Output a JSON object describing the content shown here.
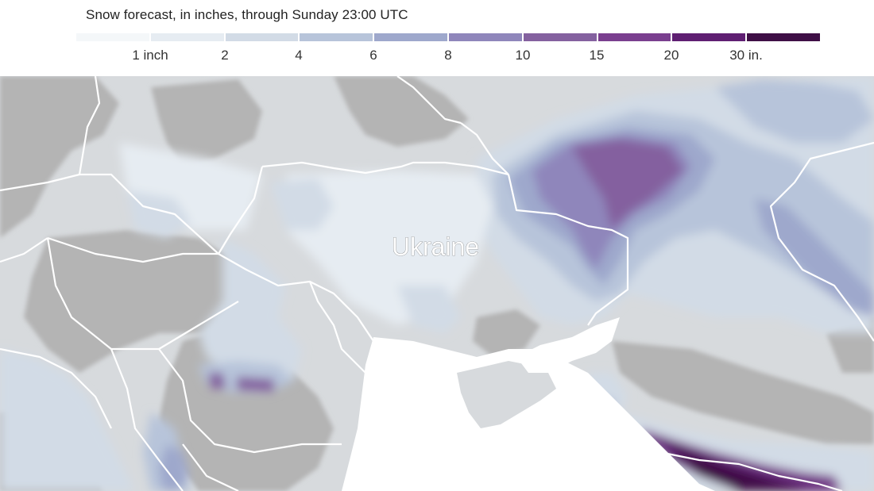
{
  "title": "Snow forecast, in inches, through Sunday 23:00 UTC",
  "legend": {
    "colors": [
      "#f4f7f9",
      "#e6ecf2",
      "#d2dbe6",
      "#b7c4da",
      "#9ea8cc",
      "#8f86bb",
      "#84619f",
      "#7a3f8f",
      "#5f1f72",
      "#3f0f46"
    ],
    "labels": [
      "1 inch",
      "2",
      "4",
      "6",
      "8",
      "10",
      "15",
      "20",
      "30 in."
    ]
  },
  "map": {
    "label": "Ukraine",
    "land_color": "#d7dadd",
    "dry_color": "#b4b4b4",
    "sea_color": "#ffffff",
    "border_color": "#ffffff"
  }
}
